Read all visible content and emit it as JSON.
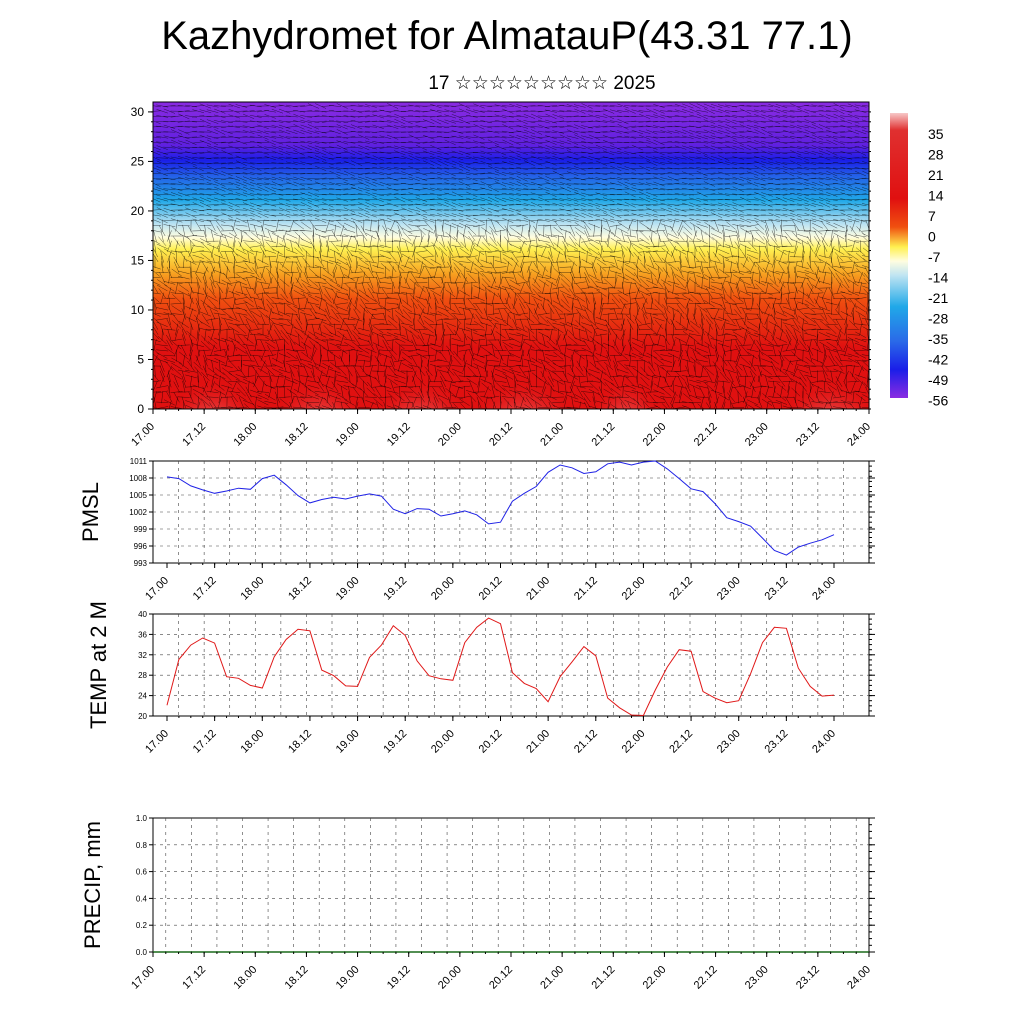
{
  "title": "Kazhydromet for AlmatauP(43.31 77.1)",
  "subtitle": "17 ☆☆☆☆☆☆☆☆☆ 2025",
  "x_tick_labels": [
    "17.00",
    "17.12",
    "18.00",
    "18.12",
    "19.00",
    "19.12",
    "20.00",
    "20.12",
    "21.00",
    "21.12",
    "22.00",
    "22.12",
    "23.00",
    "23.12",
    "24.00"
  ],
  "chart_data": [
    {
      "type": "heatmap",
      "description_kind": "temperature cross-section with wind barbs",
      "y_ticks": [
        "0",
        "5",
        "10",
        "15",
        "20",
        "25",
        "30"
      ],
      "ylim": [
        0,
        31
      ],
      "colorbar_labels": [
        "35",
        "28",
        "21",
        "14",
        "7",
        "0",
        "-7",
        "-14",
        "-21",
        "-28",
        "-35",
        "-42",
        "-49",
        "-56"
      ],
      "colors": {
        "hot": "#f7c8c8",
        "warm": "#e01010",
        "orange": "#f07010",
        "yellow": "#fff050",
        "lightblue": "#bfe4f2",
        "cyan": "#20a8e8",
        "blue": "#1a1ee8",
        "violet": "#8a2be2"
      }
    },
    {
      "type": "line",
      "ylabel": "PMSL",
      "y_ticks": [
        "1011",
        "1008",
        "1005",
        "1002",
        "999",
        "996",
        "993"
      ],
      "ylim": [
        993,
        1011
      ],
      "color": "#1f22e6",
      "x": [
        0,
        3,
        6,
        9,
        12,
        15,
        18,
        21,
        24,
        27,
        30,
        33,
        36,
        39,
        42,
        45,
        48,
        51,
        54,
        57,
        60,
        63,
        66,
        69,
        72,
        75,
        78,
        81,
        84,
        87,
        90,
        93,
        96,
        99,
        102,
        105,
        108,
        111,
        114,
        117,
        120,
        123,
        126,
        129,
        132,
        135,
        138,
        141,
        144,
        147,
        150,
        153,
        156,
        159,
        162,
        165,
        168
      ],
      "values": [
        1008.2,
        1007.9,
        1006.6,
        1005.9,
        1005.3,
        1005.7,
        1006.2,
        1006.0,
        1007.9,
        1008.5,
        1006.8,
        1004.9,
        1003.6,
        1004.2,
        1004.6,
        1004.3,
        1004.8,
        1005.2,
        1004.8,
        1002.5,
        1001.7,
        1002.6,
        1002.5,
        1001.3,
        1001.7,
        1002.2,
        1001.5,
        999.9,
        1000.2,
        1003.9,
        1005.3,
        1006.5,
        1009.0,
        1010.3,
        1009.8,
        1008.8,
        1009.1,
        1010.5,
        1010.8,
        1010.3,
        1010.8,
        1011.0,
        1009.6,
        1007.9,
        1006.1,
        1005.6,
        1003.5,
        1001.0,
        1000.3,
        999.5,
        997.4,
        995.2,
        994.4,
        995.8,
        996.5,
        997.1,
        998.0
      ]
    },
    {
      "type": "line",
      "ylabel": "TEMP at 2 M",
      "y_ticks": [
        "40",
        "36",
        "32",
        "28",
        "24",
        "20"
      ],
      "ylim": [
        20,
        40
      ],
      "color": "#e01818",
      "x": [
        0,
        3,
        6,
        9,
        12,
        15,
        18,
        21,
        24,
        27,
        30,
        33,
        36,
        39,
        42,
        45,
        48,
        51,
        54,
        57,
        60,
        63,
        66,
        69,
        72,
        75,
        78,
        81,
        84,
        87,
        90,
        93,
        96,
        99,
        102,
        105,
        108,
        111,
        114,
        117,
        120,
        123,
        126,
        129,
        132,
        135,
        138,
        141,
        144,
        147,
        150,
        153,
        156,
        159,
        162,
        165,
        168
      ],
      "values": [
        22.1,
        31.1,
        33.9,
        35.3,
        34.3,
        27.7,
        27.4,
        26.0,
        25.5,
        31.6,
        35.0,
        37.0,
        36.7,
        29.0,
        27.9,
        25.9,
        25.8,
        31.5,
        33.9,
        37.7,
        35.8,
        30.8,
        27.9,
        27.3,
        27.0,
        34.4,
        37.4,
        39.2,
        38.1,
        28.5,
        26.4,
        25.4,
        22.8,
        27.7,
        30.6,
        33.6,
        31.8,
        23.5,
        21.6,
        20.2,
        20.1,
        25.1,
        29.6,
        33.0,
        32.7,
        24.8,
        23.5,
        22.6,
        23.0,
        28.3,
        34.4,
        37.4,
        37.2,
        29.4,
        25.8,
        23.9,
        24.1
      ]
    },
    {
      "type": "line",
      "ylabel": "PRECIP, mm",
      "y_ticks": [
        "1.0",
        "0.8",
        "0.6",
        "0.4",
        "0.2",
        "0.0"
      ],
      "ylim": [
        0,
        1
      ],
      "color": "#1a6a1a",
      "x": [
        0,
        168
      ],
      "values": [
        0,
        0
      ]
    }
  ]
}
